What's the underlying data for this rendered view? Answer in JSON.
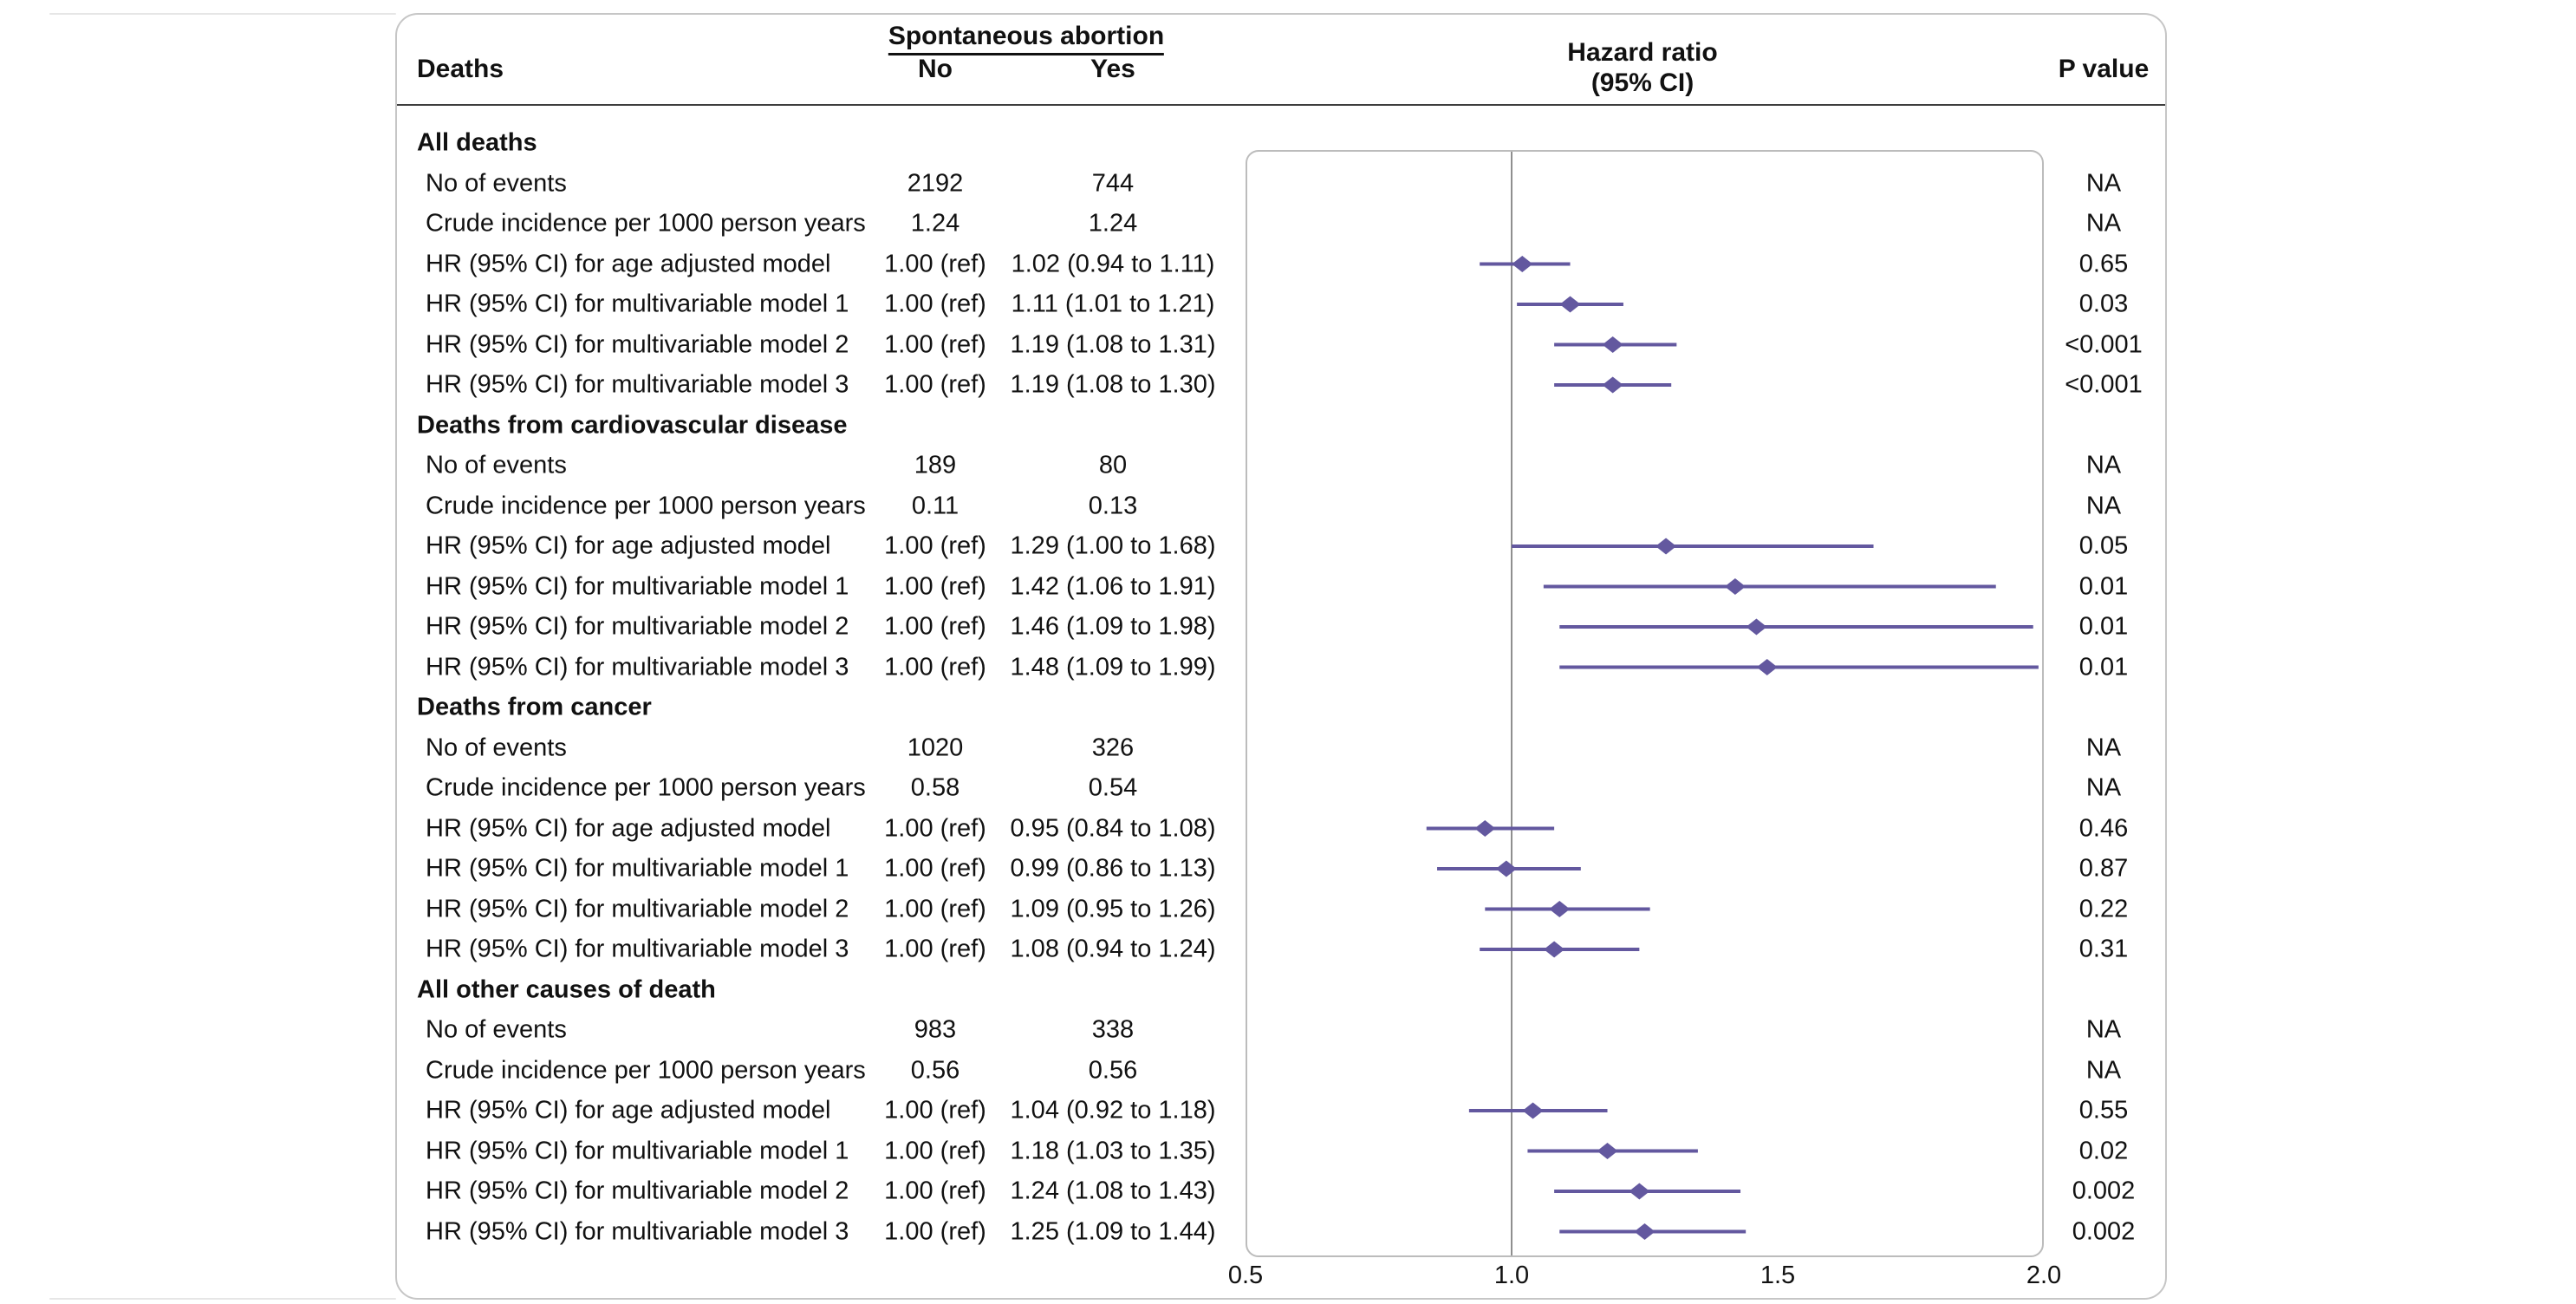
{
  "figure": {
    "header": {
      "deaths": "Deaths",
      "group": "Spontaneous abortion",
      "no": "No",
      "yes": "Yes",
      "hazard_line1": "Hazard ratio",
      "hazard_line2": "(95% CI)",
      "p": "P value"
    },
    "sections": [
      {
        "title": "All deaths",
        "rows": [
          {
            "label": "No of events",
            "no": "2192",
            "yes": "744",
            "p": "NA"
          },
          {
            "label": "Crude incidence per 1000 person years",
            "no": "1.24",
            "yes": "1.24",
            "p": "NA"
          },
          {
            "label": "HR (95% CI) for age adjusted model",
            "no": "1.00 (ref)",
            "yes": "1.02 (0.94 to 1.11)",
            "p": "0.65"
          },
          {
            "label": "HR (95% CI) for multivariable model 1",
            "no": "1.00 (ref)",
            "yes": "1.11 (1.01 to 1.21)",
            "p": "0.03"
          },
          {
            "label": "HR (95% CI) for multivariable model 2",
            "no": "1.00 (ref)",
            "yes": "1.19 (1.08 to 1.31)",
            "p": "<0.001"
          },
          {
            "label": "HR (95% CI) for multivariable model 3",
            "no": "1.00 (ref)",
            "yes": "1.19 (1.08 to 1.30)",
            "p": "<0.001"
          }
        ]
      },
      {
        "title": "Deaths from cardiovascular disease",
        "rows": [
          {
            "label": "No of events",
            "no": "189",
            "yes": "80",
            "p": "NA"
          },
          {
            "label": "Crude incidence per 1000 person years",
            "no": "0.11",
            "yes": "0.13",
            "p": "NA"
          },
          {
            "label": "HR (95% CI) for age adjusted model",
            "no": "1.00 (ref)",
            "yes": "1.29 (1.00 to 1.68)",
            "p": "0.05"
          },
          {
            "label": "HR (95% CI) for multivariable model 1",
            "no": "1.00 (ref)",
            "yes": "1.42 (1.06 to 1.91)",
            "p": "0.01"
          },
          {
            "label": "HR (95% CI) for multivariable model 2",
            "no": "1.00 (ref)",
            "yes": "1.46 (1.09 to 1.98)",
            "p": "0.01"
          },
          {
            "label": "HR (95% CI) for multivariable model 3",
            "no": "1.00 (ref)",
            "yes": "1.48 (1.09 to 1.99)",
            "p": "0.01"
          }
        ]
      },
      {
        "title": "Deaths from cancer",
        "rows": [
          {
            "label": "No of events",
            "no": "1020",
            "yes": "326",
            "p": "NA"
          },
          {
            "label": "Crude incidence per 1000 person years",
            "no": "0.58",
            "yes": "0.54",
            "p": "NA"
          },
          {
            "label": "HR (95% CI) for age adjusted model",
            "no": "1.00 (ref)",
            "yes": "0.95 (0.84 to 1.08)",
            "p": "0.46"
          },
          {
            "label": "HR (95% CI) for multivariable model 1",
            "no": "1.00 (ref)",
            "yes": "0.99 (0.86 to 1.13)",
            "p": "0.87"
          },
          {
            "label": "HR (95% CI) for multivariable model 2",
            "no": "1.00 (ref)",
            "yes": "1.09 (0.95 to 1.26)",
            "p": "0.22"
          },
          {
            "label": "HR (95% CI) for multivariable model 3",
            "no": "1.00 (ref)",
            "yes": "1.08 (0.94 to 1.24)",
            "p": "0.31"
          }
        ]
      },
      {
        "title": "All other causes of death",
        "rows": [
          {
            "label": "No of events",
            "no": "983",
            "yes": "338",
            "p": "NA"
          },
          {
            "label": "Crude incidence per 1000 person years",
            "no": "0.56",
            "yes": "0.56",
            "p": "NA"
          },
          {
            "label": "HR (95% CI) for age adjusted model",
            "no": "1.00 (ref)",
            "yes": "1.04 (0.92 to 1.18)",
            "p": "0.55"
          },
          {
            "label": "HR (95% CI) for multivariable model 1",
            "no": "1.00 (ref)",
            "yes": "1.18 (1.03 to 1.35)",
            "p": "0.02"
          },
          {
            "label": "HR (95% CI) for multivariable model 2",
            "no": "1.00 (ref)",
            "yes": "1.24 (1.08 to 1.43)",
            "p": "0.002"
          },
          {
            "label": "HR (95% CI) for multivariable model 3",
            "no": "1.00 (ref)",
            "yes": "1.25 (1.09 to 1.44)",
            "p": "0.002"
          }
        ]
      }
    ]
  },
  "chart_data": {
    "type": "scatter",
    "subtype": "forest-plot",
    "title": "Hazard ratio (95% CI)",
    "xlim": [
      0.5,
      2.0
    ],
    "x_ticks": [
      0.5,
      1.0,
      1.5,
      2.0
    ],
    "x_tick_labels": [
      "0.5",
      "1.0",
      "1.5",
      "2.0"
    ],
    "reference_line": 1.0,
    "marker_color": "#63589f",
    "grid": false,
    "groups": [
      {
        "group": "All deaths",
        "no_events": 2192,
        "yes_events": 744,
        "crude_incidence": [
          1.24,
          1.24
        ],
        "estimates": [
          {
            "model": "age adjusted model",
            "hr": 1.02,
            "ci": [
              0.94,
              1.11
            ],
            "p": "0.65"
          },
          {
            "model": "multivariable model 1",
            "hr": 1.11,
            "ci": [
              1.01,
              1.21
            ],
            "p": "0.03"
          },
          {
            "model": "multivariable model 2",
            "hr": 1.19,
            "ci": [
              1.08,
              1.31
            ],
            "p": "<0.001"
          },
          {
            "model": "multivariable model 3",
            "hr": 1.19,
            "ci": [
              1.08,
              1.3
            ],
            "p": "<0.001"
          }
        ]
      },
      {
        "group": "Deaths from cardiovascular disease",
        "no_events": 189,
        "yes_events": 80,
        "crude_incidence": [
          0.11,
          0.13
        ],
        "estimates": [
          {
            "model": "age adjusted model",
            "hr": 1.29,
            "ci": [
              1.0,
              1.68
            ],
            "p": "0.05"
          },
          {
            "model": "multivariable model 1",
            "hr": 1.42,
            "ci": [
              1.06,
              1.91
            ],
            "p": "0.01"
          },
          {
            "model": "multivariable model 2",
            "hr": 1.46,
            "ci": [
              1.09,
              1.98
            ],
            "p": "0.01"
          },
          {
            "model": "multivariable model 3",
            "hr": 1.48,
            "ci": [
              1.09,
              1.99
            ],
            "p": "0.01"
          }
        ]
      },
      {
        "group": "Deaths from cancer",
        "no_events": 1020,
        "yes_events": 326,
        "crude_incidence": [
          0.58,
          0.54
        ],
        "estimates": [
          {
            "model": "age adjusted model",
            "hr": 0.95,
            "ci": [
              0.84,
              1.08
            ],
            "p": "0.46"
          },
          {
            "model": "multivariable model 1",
            "hr": 0.99,
            "ci": [
              0.86,
              1.13
            ],
            "p": "0.87"
          },
          {
            "model": "multivariable model 2",
            "hr": 1.09,
            "ci": [
              0.95,
              1.26
            ],
            "p": "0.22"
          },
          {
            "model": "multivariable model 3",
            "hr": 1.08,
            "ci": [
              0.94,
              1.24
            ],
            "p": "0.31"
          }
        ]
      },
      {
        "group": "All other causes of death",
        "no_events": 983,
        "yes_events": 338,
        "crude_incidence": [
          0.56,
          0.56
        ],
        "estimates": [
          {
            "model": "age adjusted model",
            "hr": 1.04,
            "ci": [
              0.92,
              1.18
            ],
            "p": "0.55"
          },
          {
            "model": "multivariable model 1",
            "hr": 1.18,
            "ci": [
              1.03,
              1.35
            ],
            "p": "0.02"
          },
          {
            "model": "multivariable model 2",
            "hr": 1.24,
            "ci": [
              1.08,
              1.43
            ],
            "p": "0.002"
          },
          {
            "model": "multivariable model 3",
            "hr": 1.25,
            "ci": [
              1.09,
              1.44
            ],
            "p": "0.002"
          }
        ]
      }
    ]
  }
}
